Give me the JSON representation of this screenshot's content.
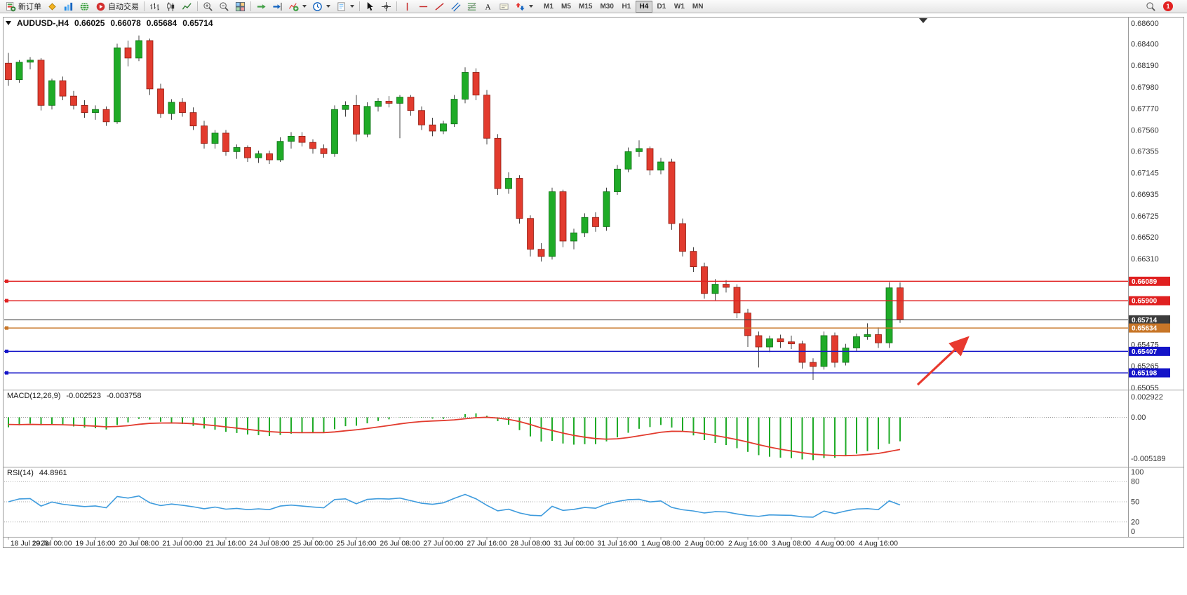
{
  "toolbar": {
    "items": [
      {
        "name": "new-order",
        "label": "新订单",
        "icon": "new-order-icon"
      },
      {
        "name": "mql-community",
        "icon": "diamond-icon"
      },
      {
        "name": "charts",
        "icon": "charts-icon"
      },
      {
        "name": "webtrader",
        "icon": "globe-icon"
      },
      {
        "name": "autotrading",
        "label": "自动交易",
        "icon": "autotrade-icon"
      },
      {
        "sep": true
      },
      {
        "name": "bar-chart-mode",
        "icon": "bar-chart-icon"
      },
      {
        "name": "candle-chart-mode",
        "icon": "candle-chart-icon"
      },
      {
        "name": "line-chart-mode",
        "icon": "line-chart-icon"
      },
      {
        "sep": true
      },
      {
        "name": "zoom-in",
        "icon": "zoom-in-icon"
      },
      {
        "name": "zoom-out",
        "icon": "zoom-out-icon"
      },
      {
        "name": "tile-windows",
        "icon": "tile-windows-icon"
      },
      {
        "sep": true
      },
      {
        "name": "auto-scroll",
        "icon": "auto-scroll-icon"
      },
      {
        "name": "chart-shift",
        "icon": "chart-shift-icon"
      },
      {
        "name": "indicators",
        "icon": "indicators-icon",
        "dropdown": true
      },
      {
        "name": "periods",
        "icon": "clock-icon",
        "dropdown": true
      },
      {
        "name": "templates",
        "icon": "template-icon",
        "dropdown": true
      },
      {
        "sep": true
      },
      {
        "name": "cursor",
        "icon": "cursor-icon"
      },
      {
        "name": "crosshair",
        "icon": "crosshair-icon"
      },
      {
        "sep": true
      },
      {
        "name": "vertical-line",
        "icon": "vline-icon"
      },
      {
        "name": "horizontal-line",
        "icon": "hline-icon"
      },
      {
        "name": "trendline",
        "icon": "trendline-icon"
      },
      {
        "name": "equidistant-channel",
        "icon": "channel-icon"
      },
      {
        "name": "fibonacci",
        "icon": "fibonacci-icon"
      },
      {
        "name": "text",
        "icon": "text-icon"
      },
      {
        "name": "text-label",
        "icon": "label-icon"
      },
      {
        "name": "arrows",
        "icon": "arrows-icon",
        "dropdown": true
      }
    ],
    "timeframes": [
      "M1",
      "M5",
      "M15",
      "M30",
      "H1",
      "H4",
      "D1",
      "W1",
      "MN"
    ],
    "active_timeframe": "H4",
    "right_items": [
      {
        "name": "symbol-search",
        "icon": "search-icon"
      }
    ],
    "notification_count": "1"
  },
  "chart": {
    "header": {
      "symbol_period": "AUDUSD-,H4",
      "open": "0.66025",
      "high": "0.66078",
      "low": "0.65684",
      "close": "0.65714"
    },
    "price_axis_ticks": [
      "0.68600",
      "0.68400",
      "0.68190",
      "0.67980",
      "0.67770",
      "0.67560",
      "0.67355",
      "0.67145",
      "0.66935",
      "0.66725",
      "0.66520",
      "0.66310",
      "0.65475",
      "0.65265",
      "0.65055"
    ],
    "hlines": [
      {
        "price": 0.66089,
        "label": "0.66089",
        "color": "#e02020"
      },
      {
        "price": 0.659,
        "label": "0.65900",
        "color": "#e02020"
      },
      {
        "price": 0.65714,
        "label": "0.65714",
        "color": "#3c3c3c",
        "current": true
      },
      {
        "price": 0.65634,
        "label": "0.65634",
        "color": "#c87628"
      },
      {
        "price": 0.65407,
        "label": "0.65407",
        "color": "#1414c8"
      },
      {
        "price": 0.65198,
        "label": "0.65198",
        "color": "#1414c8"
      }
    ],
    "time_axis": [
      "18 Jul 2023",
      "19 Jul 00:00",
      "19 Jul 16:00",
      "20 Jul 08:00",
      "21 Jul 00:00",
      "21 Jul 16:00",
      "24 Jul 08:00",
      "25 Jul 00:00",
      "25 Jul 16:00",
      "26 Jul 08:00",
      "27 Jul 00:00",
      "27 Jul 16:00",
      "28 Jul 08:00",
      "31 Jul 00:00",
      "31 Jul 16:00",
      "1 Aug 08:00",
      "2 Aug 00:00",
      "2 Aug 16:00",
      "3 Aug 08:00",
      "4 Aug 00:00",
      "4 Aug 16:00"
    ]
  },
  "macd": {
    "name": "MACD(12,26,9)",
    "value_main": "-0.002523",
    "value_signal": "-0.003758",
    "axis_max": "0.002922",
    "axis_zero": "0.00",
    "axis_min": "-0.005189"
  },
  "rsi": {
    "name": "RSI(14)",
    "value": "44.8961",
    "levels": [
      "100",
      "80",
      "50",
      "20",
      "0"
    ]
  },
  "chart_data": {
    "type": "candlestick",
    "title": "AUDUSD H4",
    "ylim": [
      0.65055,
      0.686
    ],
    "bars_per_time_label": 4,
    "candles": [
      [
        0.6821,
        0.6831,
        0.6799,
        0.6805
      ],
      [
        0.6805,
        0.6824,
        0.6802,
        0.6822
      ],
      [
        0.6822,
        0.6827,
        0.6815,
        0.6824
      ],
      [
        0.6824,
        0.6826,
        0.6775,
        0.678
      ],
      [
        0.678,
        0.6806,
        0.6776,
        0.6804
      ],
      [
        0.6804,
        0.6808,
        0.6785,
        0.6789
      ],
      [
        0.6789,
        0.6794,
        0.6776,
        0.678
      ],
      [
        0.678,
        0.6785,
        0.6768,
        0.6773
      ],
      [
        0.6773,
        0.678,
        0.6766,
        0.6776
      ],
      [
        0.6776,
        0.6779,
        0.676,
        0.6764
      ],
      [
        0.6764,
        0.684,
        0.6762,
        0.6836
      ],
      [
        0.6836,
        0.6843,
        0.6818,
        0.6826
      ],
      [
        0.6826,
        0.6848,
        0.6823,
        0.6843
      ],
      [
        0.6843,
        0.6845,
        0.679,
        0.6796
      ],
      [
        0.6796,
        0.6801,
        0.6768,
        0.6772
      ],
      [
        0.6772,
        0.6786,
        0.6766,
        0.6783
      ],
      [
        0.6783,
        0.6787,
        0.6769,
        0.6773
      ],
      [
        0.6773,
        0.6778,
        0.6756,
        0.676
      ],
      [
        0.676,
        0.6765,
        0.6738,
        0.6743
      ],
      [
        0.6743,
        0.6756,
        0.6738,
        0.6753
      ],
      [
        0.6753,
        0.6756,
        0.6731,
        0.6735
      ],
      [
        0.6735,
        0.6742,
        0.6728,
        0.6739
      ],
      [
        0.6739,
        0.6741,
        0.6725,
        0.6729
      ],
      [
        0.6729,
        0.6736,
        0.6724,
        0.6733
      ],
      [
        0.6733,
        0.6736,
        0.6723,
        0.6727
      ],
      [
        0.6727,
        0.6749,
        0.6725,
        0.6745
      ],
      [
        0.6745,
        0.6754,
        0.6738,
        0.675
      ],
      [
        0.675,
        0.6754,
        0.674,
        0.6744
      ],
      [
        0.6744,
        0.6747,
        0.6733,
        0.6738
      ],
      [
        0.6738,
        0.6742,
        0.6729,
        0.6733
      ],
      [
        0.6733,
        0.678,
        0.673,
        0.6776
      ],
      [
        0.6776,
        0.6784,
        0.6769,
        0.678
      ],
      [
        0.678,
        0.679,
        0.6745,
        0.6752
      ],
      [
        0.6752,
        0.6783,
        0.6749,
        0.6779
      ],
      [
        0.6779,
        0.6787,
        0.6774,
        0.6784
      ],
      [
        0.6784,
        0.6789,
        0.6778,
        0.6782
      ],
      [
        0.6782,
        0.679,
        0.6748,
        0.6788
      ],
      [
        0.6788,
        0.679,
        0.677,
        0.6775
      ],
      [
        0.6775,
        0.6779,
        0.6756,
        0.6761
      ],
      [
        0.6761,
        0.6768,
        0.675,
        0.6755
      ],
      [
        0.6755,
        0.6765,
        0.6752,
        0.6762
      ],
      [
        0.6762,
        0.679,
        0.6759,
        0.6786
      ],
      [
        0.6786,
        0.6817,
        0.6782,
        0.6812
      ],
      [
        0.6812,
        0.6816,
        0.6785,
        0.679
      ],
      [
        0.679,
        0.6795,
        0.6742,
        0.6748
      ],
      [
        0.6748,
        0.6752,
        0.6693,
        0.6699
      ],
      [
        0.6699,
        0.6715,
        0.6694,
        0.6709
      ],
      [
        0.6709,
        0.6712,
        0.6665,
        0.667
      ],
      [
        0.667,
        0.6673,
        0.6633,
        0.664
      ],
      [
        0.664,
        0.6646,
        0.6628,
        0.6633
      ],
      [
        0.6633,
        0.67,
        0.663,
        0.6696
      ],
      [
        0.6696,
        0.6698,
        0.6642,
        0.6648
      ],
      [
        0.6648,
        0.666,
        0.664,
        0.6656
      ],
      [
        0.6656,
        0.6675,
        0.6652,
        0.6671
      ],
      [
        0.6671,
        0.6676,
        0.6657,
        0.6662
      ],
      [
        0.6662,
        0.67,
        0.6658,
        0.6696
      ],
      [
        0.6696,
        0.6722,
        0.6693,
        0.6718
      ],
      [
        0.6718,
        0.6739,
        0.6715,
        0.6735
      ],
      [
        0.6735,
        0.6746,
        0.673,
        0.6738
      ],
      [
        0.6738,
        0.674,
        0.6712,
        0.6717
      ],
      [
        0.6717,
        0.6729,
        0.6713,
        0.6725
      ],
      [
        0.6725,
        0.6728,
        0.6659,
        0.6665
      ],
      [
        0.6665,
        0.667,
        0.6633,
        0.6638
      ],
      [
        0.6638,
        0.6642,
        0.6618,
        0.6623
      ],
      [
        0.6623,
        0.6627,
        0.6592,
        0.6597
      ],
      [
        0.6597,
        0.6611,
        0.659,
        0.6606
      ],
      [
        0.6606,
        0.661,
        0.6598,
        0.6603
      ],
      [
        0.6603,
        0.6606,
        0.6573,
        0.6578
      ],
      [
        0.6578,
        0.6582,
        0.6545,
        0.6556
      ],
      [
        0.6556,
        0.656,
        0.6525,
        0.6545
      ],
      [
        0.6545,
        0.6556,
        0.654,
        0.6553
      ],
      [
        0.6553,
        0.6557,
        0.6544,
        0.655
      ],
      [
        0.655,
        0.6556,
        0.6543,
        0.6548
      ],
      [
        0.6548,
        0.6551,
        0.6524,
        0.653
      ],
      [
        0.653,
        0.6534,
        0.6513,
        0.6526
      ],
      [
        0.6526,
        0.656,
        0.6523,
        0.6556
      ],
      [
        0.6556,
        0.6559,
        0.6525,
        0.653
      ],
      [
        0.653,
        0.6548,
        0.6527,
        0.6544
      ],
      [
        0.6544,
        0.6558,
        0.6541,
        0.6555
      ],
      [
        0.6555,
        0.6568,
        0.6552,
        0.6557
      ],
      [
        0.6557,
        0.6564,
        0.6544,
        0.6549
      ],
      [
        0.6549,
        0.6608,
        0.6544,
        0.66025
      ],
      [
        0.66025,
        0.66078,
        0.65684,
        0.65714
      ]
    ],
    "indicators": [
      {
        "type": "macd_histogram",
        "name": "MACD(12,26,9)",
        "fast": 12,
        "slow": 26,
        "signal": 9,
        "last_main": -0.002523,
        "last_signal": -0.003758,
        "ylim": [
          -0.005189,
          0.002922
        ],
        "histogram_color": "#1fab27",
        "signal_color": "#e23b2e"
      },
      {
        "type": "rsi",
        "name": "RSI(14)",
        "period": 14,
        "last_value": 44.8961,
        "ylim": [
          0,
          100
        ],
        "levels": [
          80,
          50,
          20
        ],
        "line_color": "#3e9bdd"
      }
    ],
    "colors": {
      "bull": "#1fab27",
      "bear": "#e23b2e",
      "wick": "#444444"
    },
    "annotations": [
      {
        "type": "arrow",
        "color": "#e8392e",
        "direction": "up-right"
      }
    ]
  }
}
